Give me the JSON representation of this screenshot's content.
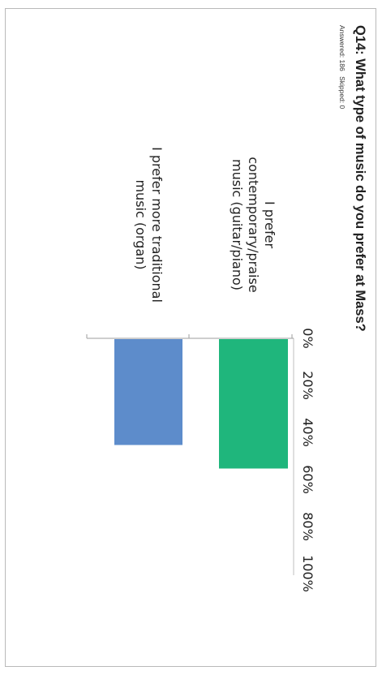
{
  "chart_data": {
    "type": "bar",
    "orientation": "horizontal",
    "title": "Q14: What type of music do you prefer at Mass?",
    "answered_label": "Answered: 186",
    "skipped_label": "Skipped: 0",
    "categories": [
      [
        "I prefer",
        "contemporary/praise",
        "music (guitar/piano)"
      ],
      [
        "I prefer more traditional",
        "music (organ)"
      ]
    ],
    "values": [
      55,
      45
    ],
    "xlim": [
      0,
      100
    ],
    "ticks": [
      "0%",
      "20%",
      "40%",
      "60%",
      "80%",
      "100%"
    ],
    "grid": false,
    "bar_colors": [
      "#1fb67c",
      "#5d8ccb"
    ]
  }
}
